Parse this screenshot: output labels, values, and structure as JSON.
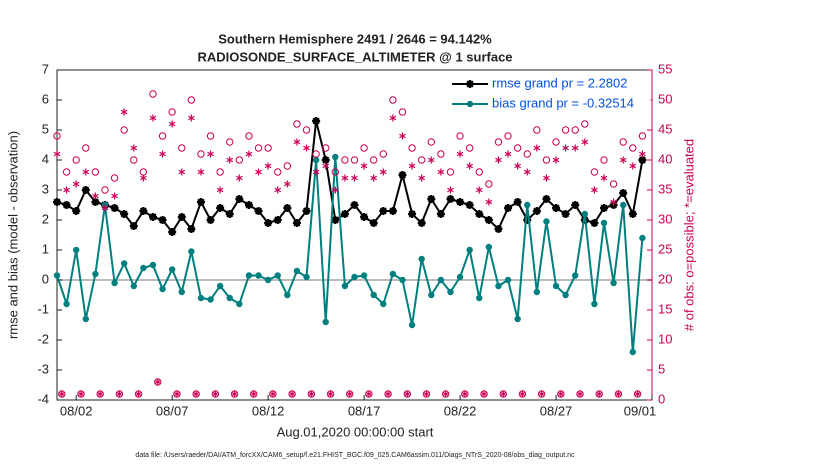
{
  "chart_data": {
    "type": "line",
    "title": "Southern Hemisphere 2491 / 2646 = 94.142%",
    "subtitle": "RADIOSONDE_SURFACE_ALTIMETER @ 1 surface",
    "xlabel": "Aug.01,2020 00:00:00 start",
    "ylabel": "rmse and bias (model - observation)",
    "y2label": "# of obs: o=possible; *=evaluated",
    "footnote": "data file: /Users/raeder/DAI/ATM_forcXX/CAM6_setup/f.e21.FHIST_BGC.f09_025.CAM6assim.011/Diags_NTrS_2020-08/obs_diag_output.nc",
    "xlim": [
      0,
      31
    ],
    "ylim": [
      -4,
      7
    ],
    "y2lim": [
      0,
      55
    ],
    "xticks": [
      {
        "value": 1,
        "label": "08/02"
      },
      {
        "value": 6,
        "label": "08/07"
      },
      {
        "value": 11,
        "label": "08/12"
      },
      {
        "value": 16,
        "label": "08/17"
      },
      {
        "value": 21,
        "label": "08/22"
      },
      {
        "value": 26,
        "label": "08/27"
      },
      {
        "value": 31,
        "label": "09/01"
      }
    ],
    "yticks": [
      -4,
      -3,
      -2,
      -1,
      0,
      1,
      2,
      3,
      4,
      5,
      6,
      7
    ],
    "y2ticks": [
      0,
      5,
      10,
      15,
      20,
      25,
      30,
      35,
      40,
      45,
      50,
      55
    ],
    "legend": "upper right",
    "x": [
      0,
      0.5,
      1,
      1.5,
      2,
      2.5,
      3,
      3.5,
      4,
      4.5,
      5,
      5.5,
      6,
      6.5,
      7,
      7.5,
      8,
      8.5,
      9,
      9.5,
      10,
      10.5,
      11,
      11.5,
      12,
      12.5,
      13,
      13.5,
      14,
      14.5,
      15,
      15.5,
      16,
      16.5,
      17,
      17.5,
      18,
      18.5,
      19,
      19.5,
      20,
      20.5,
      21,
      21.5,
      22,
      22.5,
      23,
      23.5,
      24,
      24.5,
      25,
      25.5,
      26,
      26.5,
      27,
      27.5,
      28,
      28.5,
      29,
      29.5,
      30,
      30.5
    ],
    "series": [
      {
        "name": "rmse grand pr = 2.2802",
        "color": "#000000",
        "marker": "star",
        "line": true,
        "values": [
          2.6,
          2.5,
          2.3,
          3.0,
          2.6,
          2.5,
          2.4,
          2.2,
          1.8,
          2.3,
          2.1,
          2.0,
          1.6,
          2.1,
          1.7,
          2.6,
          2.0,
          2.4,
          2.2,
          2.7,
          2.5,
          2.3,
          1.9,
          2.0,
          2.4,
          1.9,
          2.3,
          5.3,
          4.0,
          2.0,
          2.2,
          2.5,
          2.1,
          1.9,
          2.3,
          2.3,
          3.5,
          2.2,
          1.9,
          2.7,
          2.2,
          2.7,
          2.6,
          2.5,
          2.2,
          2.0,
          1.7,
          2.4,
          2.6,
          2.0,
          2.3,
          2.7,
          2.4,
          2.2,
          2.5,
          2.0,
          1.9,
          2.4,
          2.5,
          2.9,
          2.2,
          4.0
        ]
      },
      {
        "name": "bias grand pr = -0.32514",
        "color": "#007f7f",
        "marker": "dot",
        "line": true,
        "values": [
          0.15,
          -0.8,
          1.0,
          -1.3,
          0.2,
          2.5,
          -0.1,
          0.55,
          -0.2,
          0.4,
          0.5,
          -0.3,
          0.35,
          -0.4,
          0.95,
          -0.6,
          -0.65,
          -0.2,
          -0.6,
          -0.8,
          0.15,
          0.15,
          0.0,
          0.15,
          -0.5,
          0.3,
          0.1,
          4.0,
          -1.4,
          4.1,
          -0.2,
          0.1,
          0.15,
          -0.5,
          -0.8,
          0.2,
          0.0,
          -1.5,
          0.7,
          -0.5,
          0.0,
          -0.4,
          0.1,
          1.0,
          -0.6,
          1.1,
          -0.2,
          0.0,
          -1.3,
          2.5,
          -0.4,
          1.95,
          -0.2,
          -0.5,
          0.15,
          2.2,
          -0.8,
          1.9,
          -0.1,
          2.5,
          -2.4,
          1.4
        ]
      },
      {
        "color": "#cc0055",
        "marker": "circle-open",
        "axis": "y2",
        "values": [
          44,
          38,
          40,
          42,
          38,
          35,
          37,
          45,
          40,
          38,
          51,
          44,
          48,
          42,
          50,
          41,
          44,
          38,
          43,
          40,
          44,
          42,
          42,
          38,
          39,
          46,
          45,
          41,
          42,
          38,
          40,
          40,
          42,
          40,
          41,
          50,
          48,
          42,
          40,
          43,
          41,
          38,
          44,
          42,
          38,
          36,
          43,
          44,
          42,
          41,
          45,
          40,
          43,
          45,
          45,
          46,
          38,
          40,
          36,
          43,
          42,
          44
        ]
      },
      {
        "color": "#cc0055",
        "marker": "asterisk",
        "axis": "y2",
        "values": [
          41,
          35,
          36,
          38,
          34,
          32,
          34,
          48,
          42,
          37,
          47,
          41,
          46,
          38,
          47,
          38,
          41,
          35,
          40,
          37,
          41,
          38,
          39,
          35,
          36,
          43,
          42,
          38,
          39,
          35,
          37,
          37,
          39,
          37,
          38,
          47,
          44,
          39,
          37,
          40,
          38,
          35,
          41,
          39,
          35,
          33,
          40,
          41,
          39,
          38,
          42,
          37,
          40,
          42,
          42,
          43,
          35,
          37,
          33,
          40,
          39,
          41
        ]
      },
      {
        "color": "#cc0055",
        "marker": "circle-open",
        "axis": "y2",
        "x": [
          0.25,
          1.25,
          2.25,
          3.25,
          4.25,
          5.25,
          6.25,
          7.25,
          8.25,
          9.25,
          10.25,
          11.25,
          12.25,
          13.25,
          14.25,
          15.25,
          16.25,
          17.25,
          18.25,
          19.25,
          20.25,
          21.25,
          22.25,
          23.25,
          24.25,
          25.25,
          26.25,
          27.25,
          28.25,
          29.25,
          30.25
        ],
        "values": [
          1,
          1,
          1,
          1,
          1,
          3,
          1,
          1,
          1,
          1,
          1,
          1,
          1,
          1,
          1,
          1,
          1,
          1,
          1,
          1,
          1,
          1,
          1,
          1,
          1,
          1,
          1,
          1,
          1,
          1,
          1
        ]
      },
      {
        "color": "#cc0055",
        "marker": "asterisk",
        "axis": "y2",
        "x": [
          0.25,
          1.25,
          2.25,
          3.25,
          4.25,
          5.25,
          6.25,
          7.25,
          8.25,
          9.25,
          10.25,
          11.25,
          12.25,
          13.25,
          14.25,
          15.25,
          16.25,
          17.25,
          18.25,
          19.25,
          20.25,
          21.25,
          22.25,
          23.25,
          24.25,
          25.25,
          26.25,
          27.25,
          28.25,
          29.25,
          30.25
        ],
        "values": [
          1,
          1,
          1,
          1,
          1,
          3,
          1,
          1,
          1,
          1,
          1,
          1,
          1,
          1,
          1,
          1,
          1,
          1,
          1,
          1,
          1,
          1,
          1,
          1,
          1,
          1,
          1,
          1,
          1,
          1,
          1
        ]
      }
    ],
    "zero_line_color": "#bbbbbb",
    "y2_color": "#cc0055",
    "legend_text_color": "#0050e0"
  }
}
